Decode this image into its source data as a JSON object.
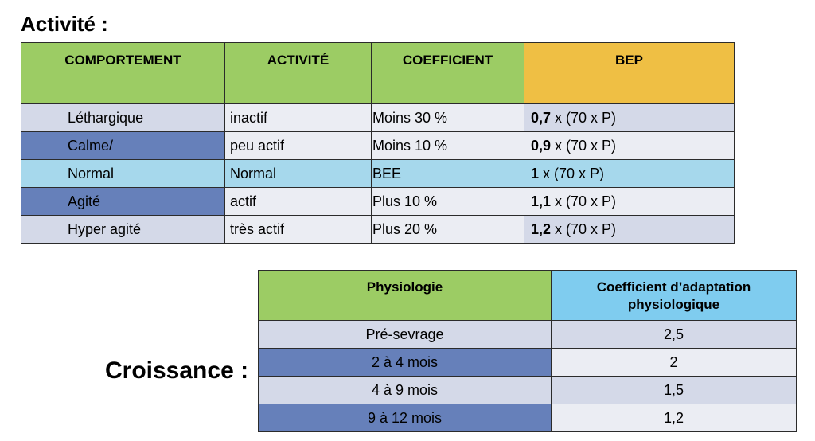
{
  "title": "Activité :",
  "activity_table": {
    "headers": [
      "COMPORTEMENT",
      "ACTIVITÉ",
      "COEFFICIENT",
      "BEP"
    ],
    "rows": [
      {
        "comportement": "Léthargique",
        "activite": "inactif",
        "coefficient": "Moins 30 %",
        "bep_bold": "0,7",
        "bep_rest": " x (70 x P)",
        "shade": "lavender"
      },
      {
        "comportement": "Calme/",
        "activite": "peu actif",
        "coefficient": "Moins 10 %",
        "bep_bold": "0,9",
        "bep_rest": " x (70 x P)",
        "shade": "blue"
      },
      {
        "comportement": "Normal",
        "activite": "Normal",
        "coefficient": "BEE",
        "bep_bold": "1",
        "bep_rest": " x (70 x P)",
        "shade": "cyan"
      },
      {
        "comportement": "Agité",
        "activite": "actif",
        "coefficient": "Plus 10 %",
        "bep_bold": "1,1",
        "bep_rest": " x (70 x P)",
        "shade": "blue"
      },
      {
        "comportement": "Hyper agité",
        "activite": "très actif",
        "coefficient": "Plus 20 %",
        "bep_bold": "1,2",
        "bep_rest": " x (70 x P)",
        "shade": "lavender"
      }
    ]
  },
  "growth": {
    "label": "Croissance :",
    "headers": [
      "Physiologie",
      "Coefficient d’adaptation physiologique"
    ],
    "rows": [
      {
        "physiologie": "Pré-sevrage",
        "coefficient": "2,5",
        "shade": "lavender"
      },
      {
        "physiologie": "2 à 4 mois",
        "coefficient": "2",
        "shade": "blue"
      },
      {
        "physiologie": "4 à 9 mois",
        "coefficient": "1,5",
        "shade": "lavender"
      },
      {
        "physiologie": "9 à 12 mois",
        "coefficient": "1,2",
        "shade": "blue"
      }
    ]
  },
  "colors": {
    "header_green": "#9ccc64",
    "header_orange": "#efbf44",
    "header_skyblue": "#7fccef",
    "row_lavender": "#d4d9e8",
    "row_blue": "#6680ba",
    "row_light": "#ebedf3",
    "row_cyan": "#a6d8ec"
  }
}
